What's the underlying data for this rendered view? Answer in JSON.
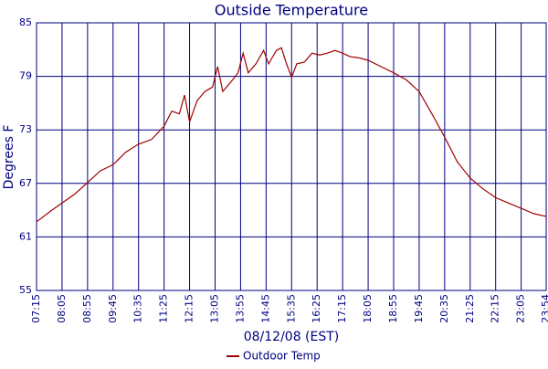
{
  "chart_data": {
    "type": "line",
    "title": "Outside Temperature",
    "xlabel": "08/12/08 (EST)",
    "ylabel": "Degrees F",
    "x": [
      "07:15",
      "07:45",
      "08:05",
      "08:30",
      "08:55",
      "09:20",
      "09:45",
      "10:10",
      "10:35",
      "11:00",
      "11:25",
      "11:40",
      "11:55",
      "12:05",
      "12:15",
      "12:30",
      "12:45",
      "13:00",
      "13:10",
      "13:20",
      "13:35",
      "13:50",
      "14:00",
      "14:10",
      "14:25",
      "14:40",
      "14:50",
      "15:05",
      "15:15",
      "15:25",
      "15:35",
      "15:45",
      "16:00",
      "16:15",
      "16:30",
      "16:45",
      "17:00",
      "17:15",
      "17:30",
      "17:45",
      "18:05",
      "18:30",
      "18:55",
      "19:20",
      "19:45",
      "20:10",
      "20:35",
      "21:00",
      "21:25",
      "21:50",
      "22:15",
      "22:40",
      "23:05",
      "23:30",
      "23:54"
    ],
    "series": [
      {
        "name": "Outdoor Temp",
        "color": "#a00000",
        "values": [
          62.7,
          64.0,
          64.8,
          65.8,
          67.1,
          68.4,
          69.1,
          70.5,
          71.4,
          71.9,
          73.4,
          75.1,
          74.8,
          76.9,
          73.9,
          76.3,
          77.3,
          77.8,
          80.1,
          77.3,
          78.3,
          79.4,
          81.6,
          79.4,
          80.4,
          81.9,
          80.4,
          81.9,
          82.2,
          80.4,
          78.9,
          80.4,
          80.6,
          81.6,
          81.4,
          81.6,
          81.9,
          81.6,
          81.2,
          81.1,
          80.8,
          80.1,
          79.4,
          78.6,
          77.3,
          74.8,
          72.2,
          69.4,
          67.6,
          66.4,
          65.4,
          64.8,
          64.2,
          63.6,
          63.3
        ]
      }
    ],
    "xlim": [
      "07:15",
      "23:54"
    ],
    "xticks": [
      "07:15",
      "08:05",
      "08:55",
      "09:45",
      "10:35",
      "11:25",
      "12:15",
      "13:05",
      "13:55",
      "14:45",
      "15:35",
      "16:25",
      "17:15",
      "18:05",
      "18:55",
      "19:45",
      "20:35",
      "21:25",
      "22:15",
      "23:05",
      "23:54"
    ],
    "ylim": [
      55,
      85
    ],
    "yticks": [
      55,
      61,
      67,
      73,
      79,
      85
    ],
    "grid": true,
    "legend": "bottom"
  }
}
